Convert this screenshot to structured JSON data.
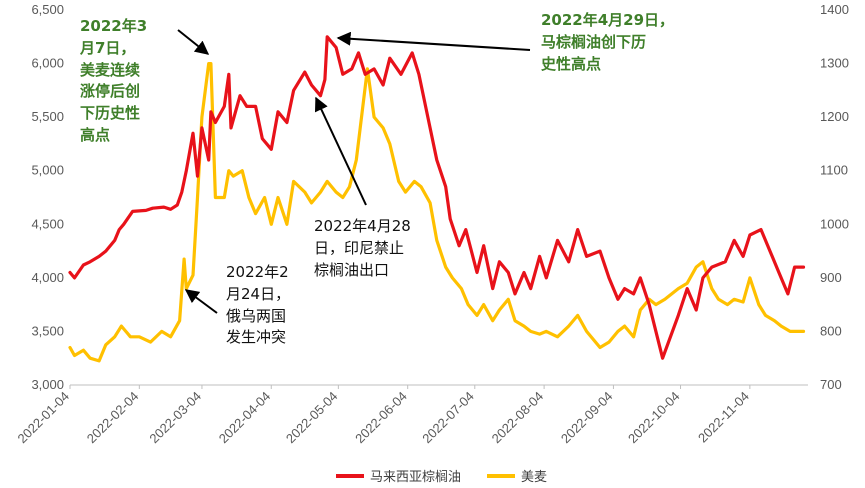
{
  "chart_data": {
    "type": "line",
    "x_ticks": [
      "2022-01-04",
      "2022-02-04",
      "2022-03-04",
      "2022-04-04",
      "2022-05-04",
      "2022-06-04",
      "2022-07-04",
      "2022-08-04",
      "2022-09-04",
      "2022-10-04",
      "2022-11-04"
    ],
    "y_left_ticks": [
      "3,000",
      "3,500",
      "4,000",
      "4,500",
      "5,000",
      "5,500",
      "6,000",
      "6,500"
    ],
    "y_left_range": [
      3000,
      6500
    ],
    "y_right_ticks": [
      "700",
      "800",
      "900",
      "1000",
      "1100",
      "1200",
      "1300",
      "1400"
    ],
    "y_right_range": [
      700,
      1400
    ],
    "x_range": [
      "2022-01-04",
      "2022-11-30"
    ],
    "grid": false,
    "legend_position": "bottom",
    "series": [
      {
        "name": "马来西亚棕榈油",
        "axis": "left",
        "color": "#e8121a",
        "points": [
          [
            "2022-01-04",
            4050
          ],
          [
            "2022-01-06",
            4000
          ],
          [
            "2022-01-10",
            4120
          ],
          [
            "2022-01-13",
            4150
          ],
          [
            "2022-01-17",
            4200
          ],
          [
            "2022-01-20",
            4250
          ],
          [
            "2022-01-24",
            4350
          ],
          [
            "2022-01-26",
            4450
          ],
          [
            "2022-01-28",
            4500
          ],
          [
            "2022-02-01",
            4620
          ],
          [
            "2022-02-07",
            4630
          ],
          [
            "2022-02-10",
            4650
          ],
          [
            "2022-02-15",
            4660
          ],
          [
            "2022-02-18",
            4640
          ],
          [
            "2022-02-21",
            4680
          ],
          [
            "2022-02-23",
            4800
          ],
          [
            "2022-02-25",
            5000
          ],
          [
            "2022-02-28",
            5350
          ],
          [
            "2022-03-02",
            4950
          ],
          [
            "2022-03-04",
            5400
          ],
          [
            "2022-03-07",
            5100
          ],
          [
            "2022-03-08",
            5550
          ],
          [
            "2022-03-10",
            5450
          ],
          [
            "2022-03-14",
            5600
          ],
          [
            "2022-03-16",
            5900
          ],
          [
            "2022-03-17",
            5400
          ],
          [
            "2022-03-21",
            5700
          ],
          [
            "2022-03-24",
            5600
          ],
          [
            "2022-03-28",
            5600
          ],
          [
            "2022-03-31",
            5300
          ],
          [
            "2022-04-04",
            5200
          ],
          [
            "2022-04-07",
            5550
          ],
          [
            "2022-04-11",
            5450
          ],
          [
            "2022-04-14",
            5750
          ],
          [
            "2022-04-19",
            5920
          ],
          [
            "2022-04-22",
            5800
          ],
          [
            "2022-04-26",
            5700
          ],
          [
            "2022-04-28",
            5850
          ],
          [
            "2022-04-29",
            6250
          ],
          [
            "2022-05-03",
            6150
          ],
          [
            "2022-05-06",
            5900
          ],
          [
            "2022-05-10",
            5950
          ],
          [
            "2022-05-13",
            6100
          ],
          [
            "2022-05-16",
            5900
          ],
          [
            "2022-05-20",
            5950
          ],
          [
            "2022-05-24",
            5800
          ],
          [
            "2022-05-27",
            6050
          ],
          [
            "2022-06-01",
            5900
          ],
          [
            "2022-06-06",
            6100
          ],
          [
            "2022-06-09",
            5900
          ],
          [
            "2022-06-14",
            5400
          ],
          [
            "2022-06-17",
            5100
          ],
          [
            "2022-06-21",
            4850
          ],
          [
            "2022-06-23",
            4550
          ],
          [
            "2022-06-27",
            4300
          ],
          [
            "2022-06-30",
            4450
          ],
          [
            "2022-07-05",
            4050
          ],
          [
            "2022-07-08",
            4300
          ],
          [
            "2022-07-12",
            3900
          ],
          [
            "2022-07-15",
            4150
          ],
          [
            "2022-07-19",
            4050
          ],
          [
            "2022-07-22",
            3850
          ],
          [
            "2022-07-26",
            4050
          ],
          [
            "2022-07-29",
            3900
          ],
          [
            "2022-08-02",
            4200
          ],
          [
            "2022-08-05",
            4000
          ],
          [
            "2022-08-10",
            4350
          ],
          [
            "2022-08-15",
            4150
          ],
          [
            "2022-08-19",
            4450
          ],
          [
            "2022-08-23",
            4200
          ],
          [
            "2022-08-29",
            4250
          ],
          [
            "2022-09-02",
            4000
          ],
          [
            "2022-09-06",
            3800
          ],
          [
            "2022-09-09",
            3900
          ],
          [
            "2022-09-13",
            3850
          ],
          [
            "2022-09-16",
            4000
          ],
          [
            "2022-09-20",
            3750
          ],
          [
            "2022-09-26",
            3250
          ],
          [
            "2022-10-03",
            3650
          ],
          [
            "2022-10-07",
            3900
          ],
          [
            "2022-10-11",
            3700
          ],
          [
            "2022-10-14",
            4000
          ],
          [
            "2022-10-18",
            4100
          ],
          [
            "2022-10-24",
            4150
          ],
          [
            "2022-10-28",
            4350
          ],
          [
            "2022-11-01",
            4200
          ],
          [
            "2022-11-04",
            4400
          ],
          [
            "2022-11-09",
            4450
          ],
          [
            "2022-11-14",
            4200
          ],
          [
            "2022-11-17",
            4050
          ],
          [
            "2022-11-21",
            3850
          ],
          [
            "2022-11-24",
            4100
          ],
          [
            "2022-11-28",
            4100
          ]
        ]
      },
      {
        "name": "美麦",
        "axis": "right",
        "color": "#ffc000",
        "points": [
          [
            "2022-01-04",
            770
          ],
          [
            "2022-01-06",
            755
          ],
          [
            "2022-01-10",
            765
          ],
          [
            "2022-01-13",
            750
          ],
          [
            "2022-01-17",
            745
          ],
          [
            "2022-01-20",
            775
          ],
          [
            "2022-01-24",
            790
          ],
          [
            "2022-01-27",
            810
          ],
          [
            "2022-01-31",
            790
          ],
          [
            "2022-02-04",
            790
          ],
          [
            "2022-02-09",
            780
          ],
          [
            "2022-02-14",
            800
          ],
          [
            "2022-02-18",
            790
          ],
          [
            "2022-02-22",
            820
          ],
          [
            "2022-02-24",
            935
          ],
          [
            "2022-02-25",
            880
          ],
          [
            "2022-02-28",
            905
          ],
          [
            "2022-03-02",
            1050
          ],
          [
            "2022-03-04",
            1200
          ],
          [
            "2022-03-07",
            1300
          ],
          [
            "2022-03-08",
            1300
          ],
          [
            "2022-03-10",
            1050
          ],
          [
            "2022-03-14",
            1050
          ],
          [
            "2022-03-16",
            1100
          ],
          [
            "2022-03-18",
            1090
          ],
          [
            "2022-03-22",
            1100
          ],
          [
            "2022-03-25",
            1050
          ],
          [
            "2022-03-28",
            1020
          ],
          [
            "2022-04-01",
            1050
          ],
          [
            "2022-04-04",
            1000
          ],
          [
            "2022-04-07",
            1050
          ],
          [
            "2022-04-11",
            1000
          ],
          [
            "2022-04-14",
            1080
          ],
          [
            "2022-04-19",
            1060
          ],
          [
            "2022-04-22",
            1040
          ],
          [
            "2022-04-26",
            1060
          ],
          [
            "2022-04-29",
            1080
          ],
          [
            "2022-05-03",
            1060
          ],
          [
            "2022-05-06",
            1050
          ],
          [
            "2022-05-09",
            1070
          ],
          [
            "2022-05-12",
            1120
          ],
          [
            "2022-05-17",
            1290
          ],
          [
            "2022-05-20",
            1200
          ],
          [
            "2022-05-24",
            1180
          ],
          [
            "2022-05-27",
            1150
          ],
          [
            "2022-05-31",
            1080
          ],
          [
            "2022-06-03",
            1060
          ],
          [
            "2022-06-07",
            1080
          ],
          [
            "2022-06-10",
            1070
          ],
          [
            "2022-06-14",
            1040
          ],
          [
            "2022-06-17",
            970
          ],
          [
            "2022-06-21",
            920
          ],
          [
            "2022-06-24",
            900
          ],
          [
            "2022-06-28",
            880
          ],
          [
            "2022-07-01",
            850
          ],
          [
            "2022-07-05",
            830
          ],
          [
            "2022-07-08",
            850
          ],
          [
            "2022-07-12",
            820
          ],
          [
            "2022-07-15",
            840
          ],
          [
            "2022-07-19",
            860
          ],
          [
            "2022-07-22",
            820
          ],
          [
            "2022-07-26",
            810
          ],
          [
            "2022-07-29",
            800
          ],
          [
            "2022-08-02",
            795
          ],
          [
            "2022-08-05",
            800
          ],
          [
            "2022-08-10",
            790
          ],
          [
            "2022-08-15",
            810
          ],
          [
            "2022-08-19",
            830
          ],
          [
            "2022-08-23",
            800
          ],
          [
            "2022-08-29",
            770
          ],
          [
            "2022-09-02",
            780
          ],
          [
            "2022-09-06",
            800
          ],
          [
            "2022-09-09",
            810
          ],
          [
            "2022-09-13",
            790
          ],
          [
            "2022-09-16",
            840
          ],
          [
            "2022-09-20",
            860
          ],
          [
            "2022-09-23",
            850
          ],
          [
            "2022-09-27",
            860
          ],
          [
            "2022-10-03",
            880
          ],
          [
            "2022-10-07",
            890
          ],
          [
            "2022-10-11",
            920
          ],
          [
            "2022-10-14",
            930
          ],
          [
            "2022-10-18",
            880
          ],
          [
            "2022-10-21",
            860
          ],
          [
            "2022-10-25",
            850
          ],
          [
            "2022-10-28",
            860
          ],
          [
            "2022-11-01",
            855
          ],
          [
            "2022-11-04",
            900
          ],
          [
            "2022-11-08",
            850
          ],
          [
            "2022-11-11",
            830
          ],
          [
            "2022-11-15",
            820
          ],
          [
            "2022-11-18",
            810
          ],
          [
            "2022-11-22",
            800
          ],
          [
            "2022-11-28",
            800
          ]
        ]
      }
    ]
  },
  "annotations": {
    "mar7": [
      "2022年3",
      "月7日，",
      "美麦连续",
      "涨停后创",
      "下历史性",
      "高点"
    ],
    "apr29": [
      "2022年4月29日，",
      "马棕榈油创下历",
      "史性高点"
    ],
    "apr28": [
      "2022年4月28",
      "日，印尼禁止",
      "棕榈油出口"
    ],
    "feb24": [
      "2022年2",
      "月24日，",
      "俄乌两国",
      "发生冲突"
    ]
  },
  "legend": {
    "palm_label": "马来西亚棕榈油",
    "wheat_label": "美麦"
  }
}
